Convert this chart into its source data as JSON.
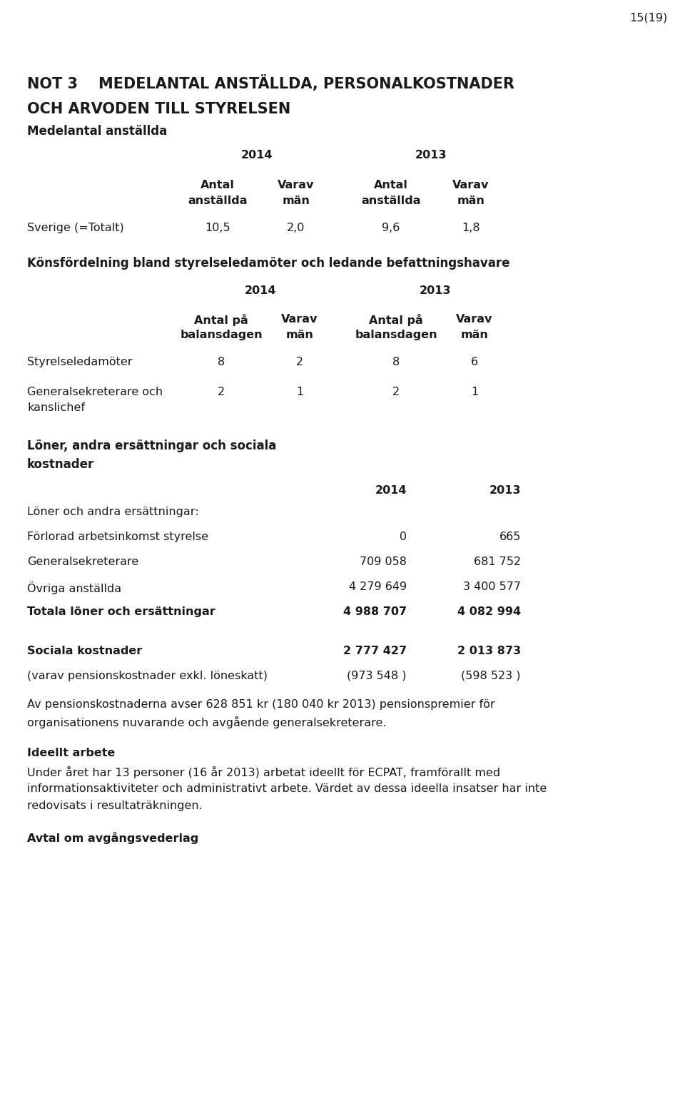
{
  "page_number": "15(19)",
  "title_line1": "NOT 3    MEDELANTAL ANSTÄLLDA, PERSONALKOSTNADER",
  "title_line2": "OCH ARVODEN TILL STYRELSEN",
  "section1_header": "Medelantal anställda",
  "col_year1": "2014",
  "col_year2": "2013",
  "col_h1a": "Antal",
  "col_h1b": "anställda",
  "col_h2a": "Varav",
  "col_h2b": "män",
  "col_h3a": "Antal",
  "col_h3b": "anställda",
  "col_h4a": "Varav",
  "col_h4b": "män",
  "row1_label": "Sverige (=Totalt)",
  "row1_v1": "10,5",
  "row1_v2": "2,0",
  "row1_v3": "9,6",
  "row1_v4": "1,8",
  "section2_header": "Könsfördelning bland styrelseledamöter och ledande befattningshavare",
  "col2_h1a": "Antal på",
  "col2_h1b": "balansdagen",
  "col2_h2a": "Varav",
  "col2_h2b": "män",
  "col2_h3a": "Antal på",
  "col2_h3b": "balansdagen",
  "col2_h4a": "Varav",
  "col2_h4b": "män",
  "row2_label": "Styrelseledamöter",
  "row2_v1": "8",
  "row2_v2": "2",
  "row2_v3": "8",
  "row2_v4": "6",
  "row3_label_line1": "Generalsekreterare och",
  "row3_label_line2": "kanslichef",
  "row3_v1": "2",
  "row3_v2": "1",
  "row3_v3": "2",
  "row3_v4": "1",
  "section3_header_line1": "Löner, andra ersättningar och sociala",
  "section3_header_line2": "kostnader",
  "loner_header_2014": "2014",
  "loner_header_2013": "2013",
  "loner_sub_header": "Löner och andra ersättningar:",
  "loner_row1_label": "Förlorad arbetsinkomst styrelse",
  "loner_row1_v1": "0",
  "loner_row1_v2": "665",
  "loner_row2_label": "Generalsekreterare",
  "loner_row2_v1": "709 058",
  "loner_row2_v2": "681 752",
  "loner_row3_label": "Övriga anställda",
  "loner_row3_v1": "4 279 649",
  "loner_row3_v2": "3 400 577",
  "loner_total_label": "Totala löner och ersättningar",
  "loner_total_v1": "4 988 707",
  "loner_total_v2": "4 082 994",
  "sociala_label": "Sociala kostnader",
  "sociala_v1": "2 777 427",
  "sociala_v2": "2 013 873",
  "pension_label": "(varav pensionskostnader exkl. löneskatt)",
  "pension_v1": "(973 548 )",
  "pension_v2": "(598 523 )",
  "para1_line1": "Av pensionskostnaderna avser 628 851 kr (180 040 kr 2013) pensionspremier för",
  "para1_line2": "organisationens nuvarande och avgående generalsekreterare.",
  "ideellt_header": "Ideellt arbete",
  "ideellt_line1": "Under året har 13 personer (16 år 2013) arbetat ideellt för ECPAT, framförallt med",
  "ideellt_line2": "informationsaktiviteter och administrativt arbete. Värdet av dessa ideella insatser har inte",
  "ideellt_line3": "redovisats i resultaträkningen.",
  "avtal_header": "Avtal om avgångsvederlag",
  "bg_color": "#ffffff",
  "text_color": "#1a1a1a",
  "fig_width": 9.6,
  "fig_height": 15.39,
  "dpi": 100
}
